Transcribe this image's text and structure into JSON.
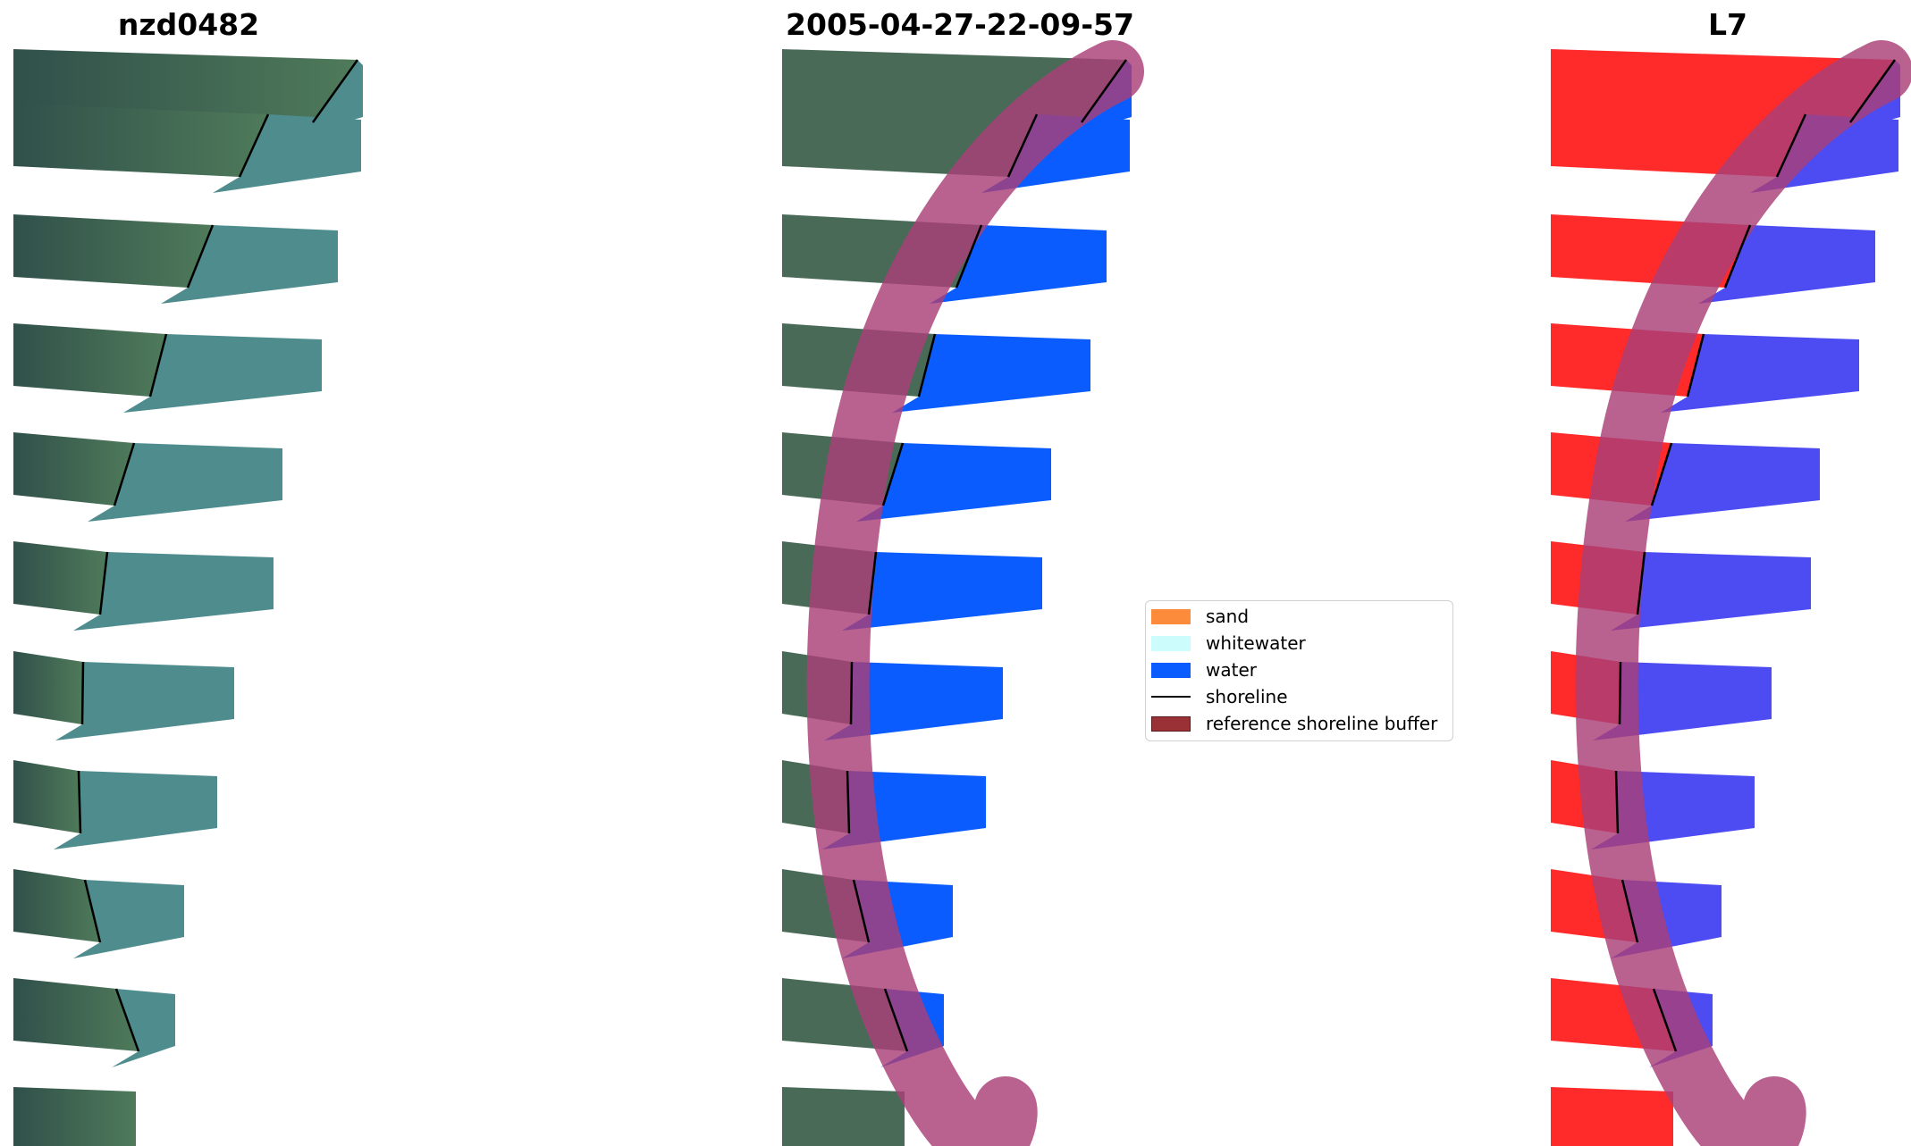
{
  "panels": [
    {
      "title": "nzd0482"
    },
    {
      "title": "2005-04-27-22-09-57"
    },
    {
      "title": "L7"
    }
  ],
  "legend": {
    "items": [
      {
        "label": "sand",
        "color": "#fd8b3c"
      },
      {
        "label": "whitewater",
        "color": "#ccfcfc"
      },
      {
        "label": "water",
        "color": "#0b5cff"
      },
      {
        "label": "shoreline",
        "color": "#000000"
      },
      {
        "label": "reference shoreline buffer",
        "color": "#9a3136"
      }
    ]
  },
  "colors": {
    "land": "#3f6a56",
    "sea_rgb": "#4f8c8e",
    "ndwi_land": "#ff2a2a",
    "ndwi_water": "#4c4cf2",
    "buffer": "#a93f78"
  }
}
